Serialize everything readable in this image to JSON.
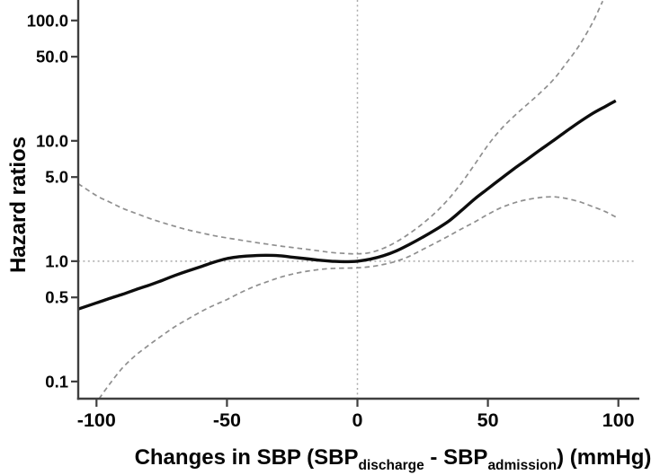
{
  "figure": {
    "background": "#ffffff"
  },
  "chart_data": {
    "type": "line",
    "title": "",
    "ylabel": "Hazard ratios",
    "xlabel_parts": [
      {
        "text": "Changes in SBP (SBP",
        "subscript": false
      },
      {
        "text": "discharge",
        "subscript": true
      },
      {
        "text": " - SBP",
        "subscript": false
      },
      {
        "text": "admission",
        "subscript": true
      },
      {
        "text": ") (mmHg)",
        "subscript": false
      }
    ],
    "x_axis": {
      "scale": "linear",
      "lim": [
        -107,
        107
      ],
      "ticks": [
        {
          "value": -100,
          "label": "-100"
        },
        {
          "value": -50,
          "label": "-50"
        },
        {
          "value": 0,
          "label": "0"
        },
        {
          "value": 50,
          "label": "50"
        },
        {
          "value": 100,
          "label": "100"
        }
      ]
    },
    "y_axis": {
      "scale": "log",
      "lim": [
        0.072,
        148
      ],
      "ticks": [
        {
          "value": 100,
          "label": "100.0"
        },
        {
          "value": 50,
          "label": "50.0"
        },
        {
          "value": 10,
          "label": "10.0"
        },
        {
          "value": 5,
          "label": "5.0"
        },
        {
          "value": 1,
          "label": "1.0"
        },
        {
          "value": 0.5,
          "label": "0.5"
        },
        {
          "value": 0.1,
          "label": "0.1"
        }
      ]
    },
    "grid": false,
    "legend": null,
    "reference_lines": [
      {
        "orientation": "horizontal",
        "value": 1.0,
        "style": "dotted"
      },
      {
        "orientation": "vertical",
        "value": 0,
        "style": "dotted"
      }
    ],
    "series": [
      {
        "name": "hazard-ratio",
        "line": "solid",
        "points": [
          [
            -107,
            0.4
          ],
          [
            -100,
            0.45
          ],
          [
            -95,
            0.49
          ],
          [
            -90,
            0.53
          ],
          [
            -85,
            0.58
          ],
          [
            -80,
            0.63
          ],
          [
            -75,
            0.69
          ],
          [
            -70,
            0.76
          ],
          [
            -65,
            0.83
          ],
          [
            -60,
            0.9
          ],
          [
            -55,
            0.98
          ],
          [
            -50,
            1.05
          ],
          [
            -45,
            1.09
          ],
          [
            -40,
            1.11
          ],
          [
            -35,
            1.12
          ],
          [
            -30,
            1.11
          ],
          [
            -25,
            1.08
          ],
          [
            -20,
            1.05
          ],
          [
            -15,
            1.02
          ],
          [
            -10,
            1.0
          ],
          [
            -5,
            0.99
          ],
          [
            0,
            1.0
          ],
          [
            5,
            1.04
          ],
          [
            10,
            1.11
          ],
          [
            15,
            1.22
          ],
          [
            20,
            1.38
          ],
          [
            25,
            1.58
          ],
          [
            30,
            1.83
          ],
          [
            35,
            2.15
          ],
          [
            40,
            2.65
          ],
          [
            45,
            3.3
          ],
          [
            50,
            4.0
          ],
          [
            55,
            4.85
          ],
          [
            60,
            5.85
          ],
          [
            65,
            7.0
          ],
          [
            70,
            8.4
          ],
          [
            75,
            10.0
          ],
          [
            80,
            12.0
          ],
          [
            85,
            14.3
          ],
          [
            90,
            16.8
          ],
          [
            95,
            19.3
          ],
          [
            99,
            21.5
          ]
        ]
      },
      {
        "name": "ci-upper",
        "line": "dashed",
        "points": [
          [
            -107,
            4.4
          ],
          [
            -100,
            3.5
          ],
          [
            -95,
            3.1
          ],
          [
            -90,
            2.75
          ],
          [
            -85,
            2.5
          ],
          [
            -80,
            2.28
          ],
          [
            -75,
            2.1
          ],
          [
            -70,
            1.95
          ],
          [
            -65,
            1.82
          ],
          [
            -60,
            1.72
          ],
          [
            -55,
            1.63
          ],
          [
            -50,
            1.56
          ],
          [
            -45,
            1.5
          ],
          [
            -40,
            1.44
          ],
          [
            -35,
            1.39
          ],
          [
            -30,
            1.34
          ],
          [
            -25,
            1.3
          ],
          [
            -20,
            1.26
          ],
          [
            -15,
            1.22
          ],
          [
            -10,
            1.18
          ],
          [
            -5,
            1.16
          ],
          [
            0,
            1.15
          ],
          [
            5,
            1.18
          ],
          [
            10,
            1.28
          ],
          [
            15,
            1.45
          ],
          [
            20,
            1.7
          ],
          [
            25,
            2.05
          ],
          [
            30,
            2.55
          ],
          [
            35,
            3.3
          ],
          [
            40,
            4.5
          ],
          [
            45,
            6.4
          ],
          [
            50,
            9.2
          ],
          [
            55,
            12.5
          ],
          [
            60,
            16.0
          ],
          [
            65,
            20.0
          ],
          [
            70,
            25.0
          ],
          [
            75,
            32.0
          ],
          [
            80,
            44.0
          ],
          [
            85,
            62.0
          ],
          [
            90,
            95.0
          ],
          [
            94,
            145.0
          ]
        ]
      },
      {
        "name": "ci-lower",
        "line": "dashed",
        "points": [
          [
            -99,
            0.072
          ],
          [
            -95,
            0.095
          ],
          [
            -90,
            0.13
          ],
          [
            -85,
            0.165
          ],
          [
            -80,
            0.2
          ],
          [
            -75,
            0.24
          ],
          [
            -70,
            0.285
          ],
          [
            -65,
            0.33
          ],
          [
            -60,
            0.38
          ],
          [
            -55,
            0.43
          ],
          [
            -50,
            0.48
          ],
          [
            -45,
            0.545
          ],
          [
            -40,
            0.61
          ],
          [
            -35,
            0.67
          ],
          [
            -30,
            0.73
          ],
          [
            -25,
            0.78
          ],
          [
            -20,
            0.82
          ],
          [
            -15,
            0.85
          ],
          [
            -10,
            0.87
          ],
          [
            -5,
            0.875
          ],
          [
            0,
            0.88
          ],
          [
            5,
            0.9
          ],
          [
            10,
            0.94
          ],
          [
            15,
            1.0
          ],
          [
            20,
            1.1
          ],
          [
            25,
            1.25
          ],
          [
            30,
            1.42
          ],
          [
            35,
            1.62
          ],
          [
            40,
            1.86
          ],
          [
            45,
            2.12
          ],
          [
            50,
            2.45
          ],
          [
            55,
            2.78
          ],
          [
            60,
            3.05
          ],
          [
            65,
            3.25
          ],
          [
            70,
            3.38
          ],
          [
            73,
            3.42
          ],
          [
            76,
            3.42
          ],
          [
            80,
            3.32
          ],
          [
            85,
            3.12
          ],
          [
            90,
            2.85
          ],
          [
            95,
            2.58
          ],
          [
            99,
            2.33
          ]
        ]
      }
    ],
    "colors": {
      "series": "#0d0d0d",
      "ci": "#8f8f8f",
      "reference": "#ababab",
      "axis": "#3f3f3f",
      "text": "#050505"
    }
  }
}
